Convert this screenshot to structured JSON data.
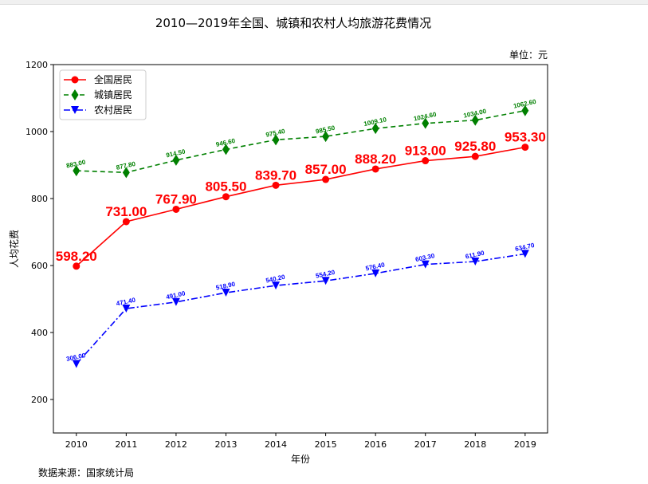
{
  "chart_data": {
    "type": "line",
    "title": "2010—2019年全国、城镇和农村人均旅游花费情况",
    "unit_label": "单位：元",
    "source_label": "数据来源：国家统计局",
    "xlabel": "年份",
    "ylabel": "人均花费",
    "x": [
      2010,
      2011,
      2012,
      2013,
      2014,
      2015,
      2016,
      2017,
      2018,
      2019
    ],
    "xlim": [
      2009.54,
      2019.45
    ],
    "ylim": [
      100,
      1200
    ],
    "yticks": [
      200,
      400,
      600,
      800,
      1000,
      1200
    ],
    "grid": false,
    "legend_position": "top-left",
    "series": [
      {
        "name": "全国居民",
        "color": "#ff0000",
        "linestyle": "solid",
        "marker": "circle",
        "label_size": "large",
        "values": [
          598.2,
          731.0,
          767.9,
          805.5,
          839.7,
          857.0,
          888.2,
          913.0,
          925.8,
          953.3
        ]
      },
      {
        "name": "城镇居民",
        "color": "#008000",
        "linestyle": "dashed",
        "marker": "diamond",
        "label_size": "small",
        "values": [
          883.0,
          877.8,
          914.5,
          946.6,
          975.4,
          985.5,
          1009.1,
          1024.6,
          1034.0,
          1062.6
        ]
      },
      {
        "name": "农村居民",
        "color": "#0000ff",
        "linestyle": "dashdot",
        "marker": "triangle-down",
        "label_size": "small",
        "values": [
          306.0,
          471.4,
          491.0,
          518.9,
          540.2,
          554.2,
          576.4,
          603.3,
          611.9,
          634.7
        ]
      }
    ]
  }
}
